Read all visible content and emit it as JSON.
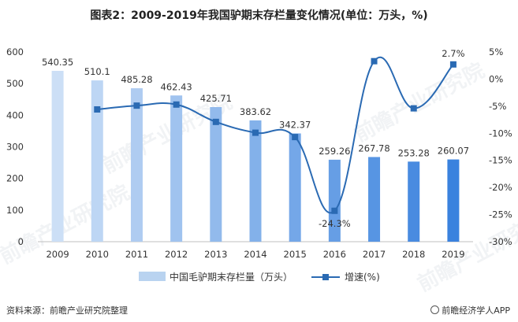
{
  "title": "图表2：2009-2019年我国驴期末存栏量变化情况(单位：万头，%)",
  "source": "资料来源：前瞻产业研究院整理",
  "credit": "前瞻经济学人APP",
  "watermark": "前瞻产业研究院",
  "colors": {
    "bar_light": "#b7d3f2",
    "bar_mid": "#8cb8ea",
    "bar_dark": "#3f86e0",
    "line": "#2a6ab3",
    "marker": "#2a6ab3",
    "grid": "#d9d9d9"
  },
  "chart_data": {
    "type": "bar",
    "categories": [
      "2009",
      "2010",
      "2011",
      "2012",
      "2013",
      "2014",
      "2015",
      "2016",
      "2017",
      "2018",
      "2019"
    ],
    "series": [
      {
        "name": "中国毛驴期末存栏量（万头）",
        "type": "bar",
        "axis": "left",
        "values": [
          540.35,
          510.1,
          485.28,
          462.43,
          425.71,
          383.62,
          342.37,
          259.26,
          267.78,
          253.28,
          260.07
        ],
        "labels": [
          "540.35",
          "510.1",
          "485.28",
          "462.43",
          "425.71",
          "383.62",
          "342.37",
          "259.26",
          "267.78",
          "253.28",
          "260.07"
        ]
      },
      {
        "name": "增速(%)",
        "type": "line",
        "axis": "right",
        "values": [
          null,
          -5.6,
          -4.9,
          -4.7,
          -7.9,
          -9.9,
          -10.7,
          -24.3,
          3.3,
          -5.4,
          2.7
        ],
        "labels": [
          "",
          "",
          "",
          "",
          "",
          "",
          "",
          "-24.3%",
          "",
          "",
          "2.7%"
        ]
      }
    ],
    "y_left": {
      "min": 0,
      "max": 600,
      "ticks": [
        0,
        100,
        200,
        300,
        400,
        500,
        600
      ],
      "tick_labels": [
        "0",
        "100",
        "200",
        "300",
        "400",
        "500",
        "600"
      ]
    },
    "y_right": {
      "min": -30,
      "max": 5,
      "ticks": [
        5,
        0,
        -5,
        -10,
        -15,
        -20,
        -25,
        -30
      ],
      "tick_labels": [
        "5%",
        "0%",
        "-5%",
        "-10%",
        "-15%",
        "-20%",
        "-25%",
        "-30%"
      ]
    },
    "legend": {
      "position": "bottom"
    },
    "grid": false
  }
}
